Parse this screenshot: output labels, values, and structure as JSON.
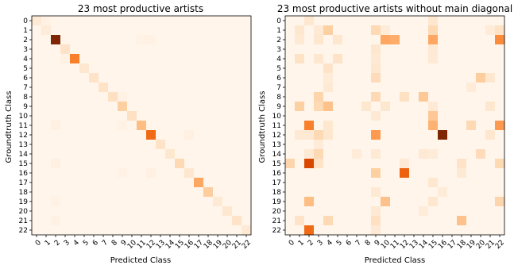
{
  "chart_data": [
    {
      "type": "heatmap",
      "title": "23 most productive artists",
      "xlabel": "Predicted Class",
      "ylabel": "Groundtruth Class",
      "x_ticks": [
        "0",
        "1",
        "2",
        "3",
        "4",
        "5",
        "6",
        "7",
        "8",
        "9",
        "10",
        "11",
        "12",
        "13",
        "14",
        "15",
        "16",
        "17",
        "18",
        "19",
        "20",
        "21",
        "22"
      ],
      "y_ticks": [
        "0",
        "1",
        "2",
        "3",
        "4",
        "5",
        "6",
        "7",
        "8",
        "9",
        "10",
        "11",
        "12",
        "13",
        "14",
        "15",
        "16",
        "17",
        "18",
        "19",
        "20",
        "21",
        "22"
      ],
      "colormap": "Oranges",
      "vmax": 1.0,
      "diagonal": [
        0.1,
        0.08,
        1.0,
        0.14,
        0.55,
        0.12,
        0.14,
        0.14,
        0.16,
        0.25,
        0.16,
        0.32,
        0.62,
        0.14,
        0.12,
        0.2,
        0.12,
        0.4,
        0.26,
        0.1,
        0.12,
        0.14,
        0.1
      ],
      "off_diagonal": [
        {
          "row": 0,
          "col": 1,
          "value": 0.03
        },
        {
          "row": 2,
          "col": 11,
          "value": 0.03
        },
        {
          "row": 2,
          "col": 12,
          "value": 0.03
        },
        {
          "row": 4,
          "col": 3,
          "value": 0.03
        },
        {
          "row": 8,
          "col": 9,
          "value": 0.03
        },
        {
          "row": 11,
          "col": 2,
          "value": 0.04
        },
        {
          "row": 11,
          "col": 9,
          "value": 0.03
        },
        {
          "row": 12,
          "col": 16,
          "value": 0.04
        },
        {
          "row": 15,
          "col": 2,
          "value": 0.04
        },
        {
          "row": 16,
          "col": 9,
          "value": 0.03
        },
        {
          "row": 16,
          "col": 12,
          "value": 0.04
        },
        {
          "row": 19,
          "col": 2,
          "value": 0.03
        },
        {
          "row": 21,
          "col": 2,
          "value": 0.03
        }
      ]
    },
    {
      "type": "heatmap",
      "title": "23 most productive artists without main diagonal",
      "xlabel": "Predicted Class",
      "ylabel": "Groundtruth Class",
      "x_ticks": [
        "0",
        "1",
        "2",
        "3",
        "4",
        "5",
        "6",
        "7",
        "8",
        "9",
        "10",
        "11",
        "12",
        "13",
        "14",
        "15",
        "16",
        "17",
        "18",
        "19",
        "20",
        "21",
        "22"
      ],
      "y_ticks": [
        "0",
        "1",
        "2",
        "3",
        "4",
        "5",
        "6",
        "7",
        "8",
        "9",
        "10",
        "11",
        "12",
        "13",
        "14",
        "15",
        "16",
        "17",
        "18",
        "19",
        "20",
        "21",
        "22"
      ],
      "colormap": "Oranges",
      "vmax": 1.0,
      "cells": [
        {
          "row": 0,
          "col": 2,
          "value": 0.12
        },
        {
          "row": 0,
          "col": 15,
          "value": 0.12
        },
        {
          "row": 1,
          "col": 1,
          "value": 0.12
        },
        {
          "row": 1,
          "col": 3,
          "value": 0.1
        },
        {
          "row": 1,
          "col": 4,
          "value": 0.25
        },
        {
          "row": 1,
          "col": 9,
          "value": 0.2
        },
        {
          "row": 1,
          "col": 10,
          "value": 0.08
        },
        {
          "row": 1,
          "col": 15,
          "value": 0.2
        },
        {
          "row": 1,
          "col": 21,
          "value": 0.08
        },
        {
          "row": 1,
          "col": 22,
          "value": 0.15
        },
        {
          "row": 2,
          "col": 1,
          "value": 0.1
        },
        {
          "row": 2,
          "col": 3,
          "value": 0.12
        },
        {
          "row": 2,
          "col": 5,
          "value": 0.12
        },
        {
          "row": 2,
          "col": 10,
          "value": 0.4
        },
        {
          "row": 2,
          "col": 11,
          "value": 0.38
        },
        {
          "row": 2,
          "col": 15,
          "value": 0.4
        },
        {
          "row": 2,
          "col": 22,
          "value": 0.5
        },
        {
          "row": 3,
          "col": 9,
          "value": 0.12
        },
        {
          "row": 3,
          "col": 15,
          "value": 0.1
        },
        {
          "row": 4,
          "col": 1,
          "value": 0.15
        },
        {
          "row": 4,
          "col": 3,
          "value": 0.12
        },
        {
          "row": 4,
          "col": 5,
          "value": 0.14
        },
        {
          "row": 4,
          "col": 9,
          "value": 0.1
        },
        {
          "row": 4,
          "col": 15,
          "value": 0.1
        },
        {
          "row": 5,
          "col": 4,
          "value": 0.14
        },
        {
          "row": 5,
          "col": 9,
          "value": 0.12
        },
        {
          "row": 6,
          "col": 4,
          "value": 0.08
        },
        {
          "row": 6,
          "col": 9,
          "value": 0.18
        },
        {
          "row": 6,
          "col": 20,
          "value": 0.26
        },
        {
          "row": 6,
          "col": 21,
          "value": 0.12
        },
        {
          "row": 7,
          "col": 4,
          "value": 0.1
        },
        {
          "row": 7,
          "col": 19,
          "value": 0.08
        },
        {
          "row": 8,
          "col": 3,
          "value": 0.22
        },
        {
          "row": 8,
          "col": 9,
          "value": 0.2
        },
        {
          "row": 8,
          "col": 12,
          "value": 0.16
        },
        {
          "row": 8,
          "col": 14,
          "value": 0.28
        },
        {
          "row": 9,
          "col": 1,
          "value": 0.25
        },
        {
          "row": 9,
          "col": 3,
          "value": 0.2
        },
        {
          "row": 9,
          "col": 4,
          "value": 0.3
        },
        {
          "row": 9,
          "col": 8,
          "value": 0.12
        },
        {
          "row": 9,
          "col": 10,
          "value": 0.12
        },
        {
          "row": 9,
          "col": 15,
          "value": 0.1
        },
        {
          "row": 9,
          "col": 21,
          "value": 0.12
        },
        {
          "row": 10,
          "col": 9,
          "value": 0.1
        },
        {
          "row": 10,
          "col": 15,
          "value": 0.28
        },
        {
          "row": 11,
          "col": 2,
          "value": 0.55
        },
        {
          "row": 11,
          "col": 4,
          "value": 0.12
        },
        {
          "row": 11,
          "col": 15,
          "value": 0.36
        },
        {
          "row": 11,
          "col": 19,
          "value": 0.2
        },
        {
          "row": 11,
          "col": 22,
          "value": 0.45
        },
        {
          "row": 12,
          "col": 1,
          "value": 0.1
        },
        {
          "row": 12,
          "col": 2,
          "value": 0.1
        },
        {
          "row": 12,
          "col": 3,
          "value": 0.2
        },
        {
          "row": 12,
          "col": 4,
          "value": 0.12
        },
        {
          "row": 12,
          "col": 9,
          "value": 0.45
        },
        {
          "row": 12,
          "col": 16,
          "value": 1.0
        },
        {
          "row": 12,
          "col": 21,
          "value": 0.12
        },
        {
          "row": 13,
          "col": 3,
          "value": 0.08
        },
        {
          "row": 14,
          "col": 2,
          "value": 0.1
        },
        {
          "row": 14,
          "col": 3,
          "value": 0.2
        },
        {
          "row": 14,
          "col": 7,
          "value": 0.08
        },
        {
          "row": 14,
          "col": 9,
          "value": 0.1
        },
        {
          "row": 14,
          "col": 14,
          "value": 0.1
        },
        {
          "row": 14,
          "col": 15,
          "value": 0.08
        },
        {
          "row": 14,
          "col": 20,
          "value": 0.18
        },
        {
          "row": 15,
          "col": 0,
          "value": 0.22
        },
        {
          "row": 15,
          "col": 2,
          "value": 0.75
        },
        {
          "row": 15,
          "col": 3,
          "value": 0.14
        },
        {
          "row": 15,
          "col": 12,
          "value": 0.1
        },
        {
          "row": 15,
          "col": 18,
          "value": 0.14
        },
        {
          "row": 15,
          "col": 22,
          "value": 0.2
        },
        {
          "row": 16,
          "col": 9,
          "value": 0.25
        },
        {
          "row": 16,
          "col": 12,
          "value": 0.65
        },
        {
          "row": 16,
          "col": 18,
          "value": 0.1
        },
        {
          "row": 17,
          "col": 15,
          "value": 0.12
        },
        {
          "row": 18,
          "col": 9,
          "value": 0.1
        },
        {
          "row": 18,
          "col": 16,
          "value": 0.08
        },
        {
          "row": 19,
          "col": 2,
          "value": 0.32
        },
        {
          "row": 19,
          "col": 10,
          "value": 0.3
        },
        {
          "row": 19,
          "col": 15,
          "value": 0.12
        },
        {
          "row": 19,
          "col": 22,
          "value": 0.22
        },
        {
          "row": 20,
          "col": 9,
          "value": 0.1
        },
        {
          "row": 20,
          "col": 14,
          "value": 0.08
        },
        {
          "row": 21,
          "col": 1,
          "value": 0.14
        },
        {
          "row": 21,
          "col": 4,
          "value": 0.2
        },
        {
          "row": 21,
          "col": 9,
          "value": 0.16
        },
        {
          "row": 21,
          "col": 18,
          "value": 0.3
        },
        {
          "row": 22,
          "col": 2,
          "value": 0.62
        },
        {
          "row": 22,
          "col": 9,
          "value": 0.1
        }
      ]
    }
  ]
}
